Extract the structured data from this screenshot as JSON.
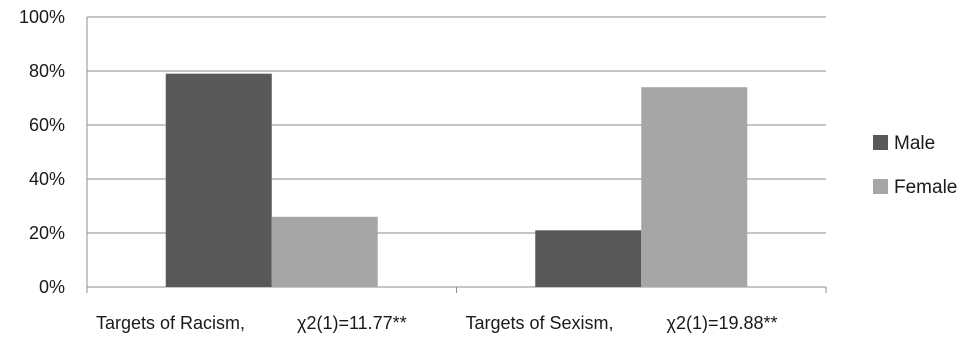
{
  "chart_data": {
    "type": "bar",
    "title": "",
    "xlabel": "",
    "ylabel": "",
    "categories": [
      "Targets of Racism,     χ2(1)=11.77**",
      "Targets of Sexism,     χ2(1)=19.88**"
    ],
    "category_parts": [
      {
        "label": "Targets of Racism,",
        "stat": "χ2(1)=11.77**"
      },
      {
        "label": "Targets of Sexism,",
        "stat": "χ2(1)=19.88**"
      }
    ],
    "series": [
      {
        "name": "Male",
        "values": [
          79,
          21
        ],
        "color": "#595959"
      },
      {
        "name": "Female",
        "values": [
          26,
          74
        ],
        "color": "#a6a6a6"
      }
    ],
    "ylim": [
      0,
      100
    ],
    "yticks": [
      "0%",
      "20%",
      "40%",
      "60%",
      "80%",
      "100%"
    ],
    "ytick_values": [
      0,
      20,
      40,
      60,
      80,
      100
    ],
    "grid": true,
    "legend_position": "right"
  }
}
